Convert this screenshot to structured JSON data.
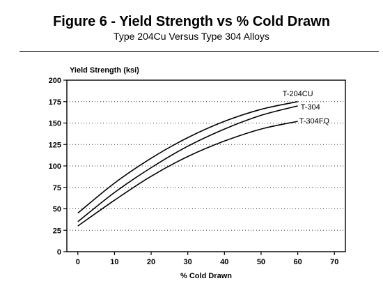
{
  "header": {
    "title": "Figure 6 - Yield Strength vs % Cold Drawn",
    "subtitle": "Type 204Cu Versus Type 304 Alloys"
  },
  "chart_data": {
    "type": "line",
    "title": "Figure 6 - Yield Strength vs % Cold Drawn",
    "subtitle": "Type 204Cu Versus Type 304 Alloys",
    "xlabel": "% Cold Drawn",
    "ylabel": "Yield Strength (ksi)",
    "xlim": [
      -3,
      73
    ],
    "ylim": [
      0,
      200
    ],
    "x_ticks": [
      0,
      10,
      20,
      30,
      40,
      50,
      60,
      70
    ],
    "y_ticks": [
      0,
      25,
      50,
      75,
      100,
      125,
      150,
      175,
      200
    ],
    "grid": "horizontal dotted",
    "legend": "labels at line ends",
    "series": [
      {
        "name": "T-204CU",
        "x": [
          0,
          10,
          20,
          30,
          40,
          50,
          60
        ],
        "y": [
          45,
          80,
          109,
          133,
          152,
          166,
          175
        ]
      },
      {
        "name": "T-304",
        "x": [
          0,
          10,
          20,
          30,
          40,
          50,
          60
        ],
        "y": [
          35,
          69,
          98,
          123,
          143,
          159,
          170
        ]
      },
      {
        "name": "T-304FQ",
        "x": [
          0,
          10,
          20,
          30,
          40,
          50,
          60
        ],
        "y": [
          30,
          60,
          88,
          111,
          129,
          143,
          152
        ]
      }
    ]
  }
}
